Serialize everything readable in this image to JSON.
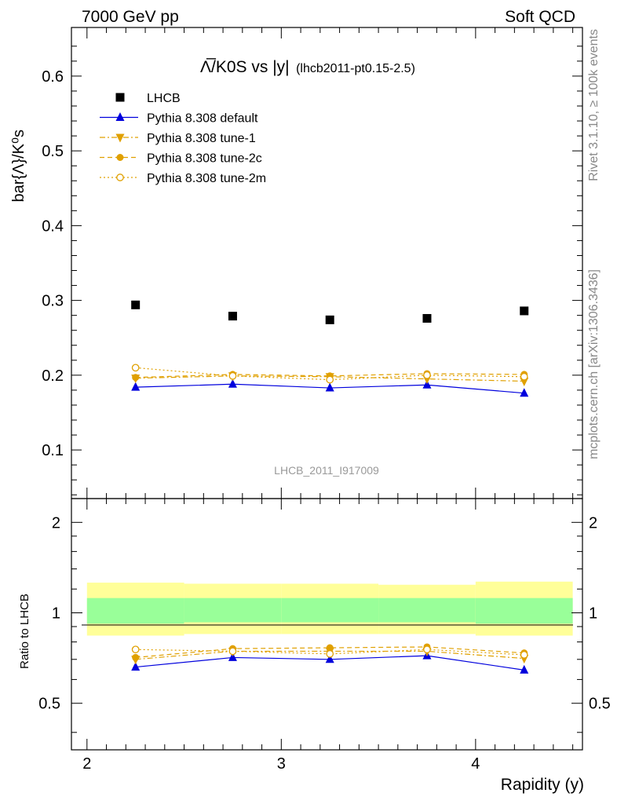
{
  "header": {
    "left": "7000 GeV pp",
    "right": "Soft QCD"
  },
  "side_labels": {
    "rivet": "Rivet 3.1.10, ≥ 100k events",
    "mcplots": "mcplots.cern.ch [arXiv:1306.3436]"
  },
  "colors": {
    "data": "#000000",
    "default": "#0000dd",
    "tunes": "#e0a000",
    "band_outer": "#ffff99",
    "band_inner": "#99ff99"
  },
  "chart_data": [
    {
      "type": "scatter",
      "panel": "main",
      "title_main": "Λ̅/K0S vs |y|",
      "title_sub": "(lhcb2011-pt0.15-2.5)",
      "ylabel": "bar{Λ}/K⁰s",
      "watermark": "LHCB_2011_I917009",
      "xlim": [
        1.92,
        4.55
      ],
      "ylim": [
        0.035,
        0.665
      ],
      "yticks": [
        0.1,
        0.2,
        0.3,
        0.4,
        0.5,
        0.6
      ],
      "ytick_labels": [
        "0.1",
        "0.2",
        "0.3",
        "0.4",
        "0.5",
        "0.6"
      ],
      "legend_position": "top-left",
      "x": [
        2.25,
        2.75,
        3.25,
        3.75,
        4.25
      ],
      "series": [
        {
          "name": "LHCB",
          "values": [
            0.294,
            0.279,
            0.274,
            0.276,
            0.286
          ]
        },
        {
          "name": "Pythia 8.308 default",
          "values": [
            0.184,
            0.188,
            0.183,
            0.187,
            0.176
          ]
        },
        {
          "name": "Pythia 8.308 tune-1",
          "values": [
            0.196,
            0.199,
            0.198,
            0.195,
            0.192
          ]
        },
        {
          "name": "Pythia 8.308 tune-2c",
          "values": [
            0.197,
            0.201,
            0.199,
            0.202,
            0.201
          ]
        },
        {
          "name": "Pythia 8.308 tune-2m",
          "values": [
            0.21,
            0.199,
            0.194,
            0.2,
            0.198
          ]
        }
      ]
    },
    {
      "type": "line",
      "panel": "ratio",
      "ylabel": "Ratio to LHCB",
      "xlabel": "Rapidity (y)",
      "xlim": [
        1.92,
        4.55
      ],
      "ylim": [
        0.35,
        2.4
      ],
      "log_y": true,
      "xticks": [
        2,
        3,
        4
      ],
      "xtick_labels": [
        "2",
        "3",
        "4"
      ],
      "yticks": [
        0.5,
        1,
        2
      ],
      "ytick_labels": [
        "0.5",
        "1",
        "2"
      ],
      "bins": [
        [
          2.0,
          2.5
        ],
        [
          2.5,
          3.0
        ],
        [
          3.0,
          3.5
        ],
        [
          3.5,
          4.0
        ],
        [
          4.0,
          4.5
        ]
      ],
      "band_outer": [
        [
          0.84,
          1.26
        ],
        [
          0.85,
          1.25
        ],
        [
          0.85,
          1.25
        ],
        [
          0.85,
          1.24
        ],
        [
          0.84,
          1.27
        ]
      ],
      "band_inner": [
        [
          0.92,
          1.12
        ],
        [
          0.93,
          1.12
        ],
        [
          0.93,
          1.12
        ],
        [
          0.93,
          1.12
        ],
        [
          0.92,
          1.12
        ]
      ],
      "x": [
        2.25,
        2.75,
        3.25,
        3.75,
        4.25
      ],
      "series": [
        {
          "name": "Pythia 8.308 default",
          "values": [
            0.66,
            0.71,
            0.7,
            0.72,
            0.645
          ]
        },
        {
          "name": "Pythia 8.308 tune-1",
          "values": [
            0.7,
            0.745,
            0.745,
            0.745,
            0.705
          ]
        },
        {
          "name": "Pythia 8.308 tune-2c",
          "values": [
            0.71,
            0.76,
            0.765,
            0.77,
            0.735
          ]
        },
        {
          "name": "Pythia 8.308 tune-2m",
          "values": [
            0.755,
            0.745,
            0.73,
            0.755,
            0.725
          ]
        }
      ]
    }
  ]
}
